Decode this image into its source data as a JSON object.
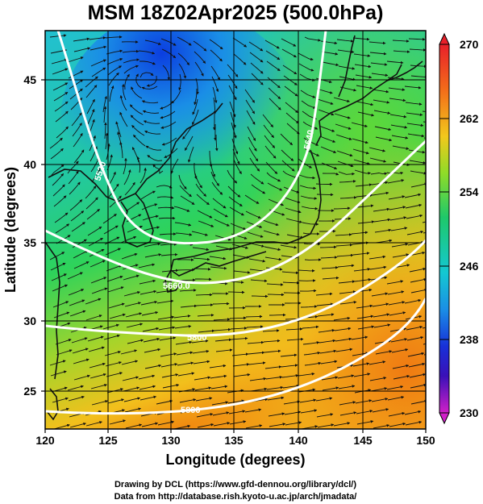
{
  "title": "MSM 18Z02Apr2025 (500.0hPa)",
  "xlabel": "Longitude (degrees)",
  "ylabel": "Latitude  (degrees)",
  "x_ticks": [
    "120",
    "125",
    "130",
    "135",
    "140",
    "145",
    "150"
  ],
  "y_ticks": [
    "25",
    "30",
    "35",
    "40",
    "45"
  ],
  "colorbar": {
    "ticks": [
      "270",
      "262",
      "254",
      "246",
      "238",
      "230"
    ]
  },
  "contour_labels": [
    "5520",
    "5640",
    "5660.0",
    "5800",
    "5800"
  ],
  "credits": {
    "line1": "Drawing by DCL (https://www.gfd-dennou.org/library/dcl/)",
    "line2": "Data from http://database.rish.kyoto-u.ac.jp/arch/jmadata/"
  },
  "colors": {
    "cold": "#0a3ad8",
    "mid": "#2ed35a",
    "warm": "#f08a10",
    "contour": "#ffffff"
  }
}
